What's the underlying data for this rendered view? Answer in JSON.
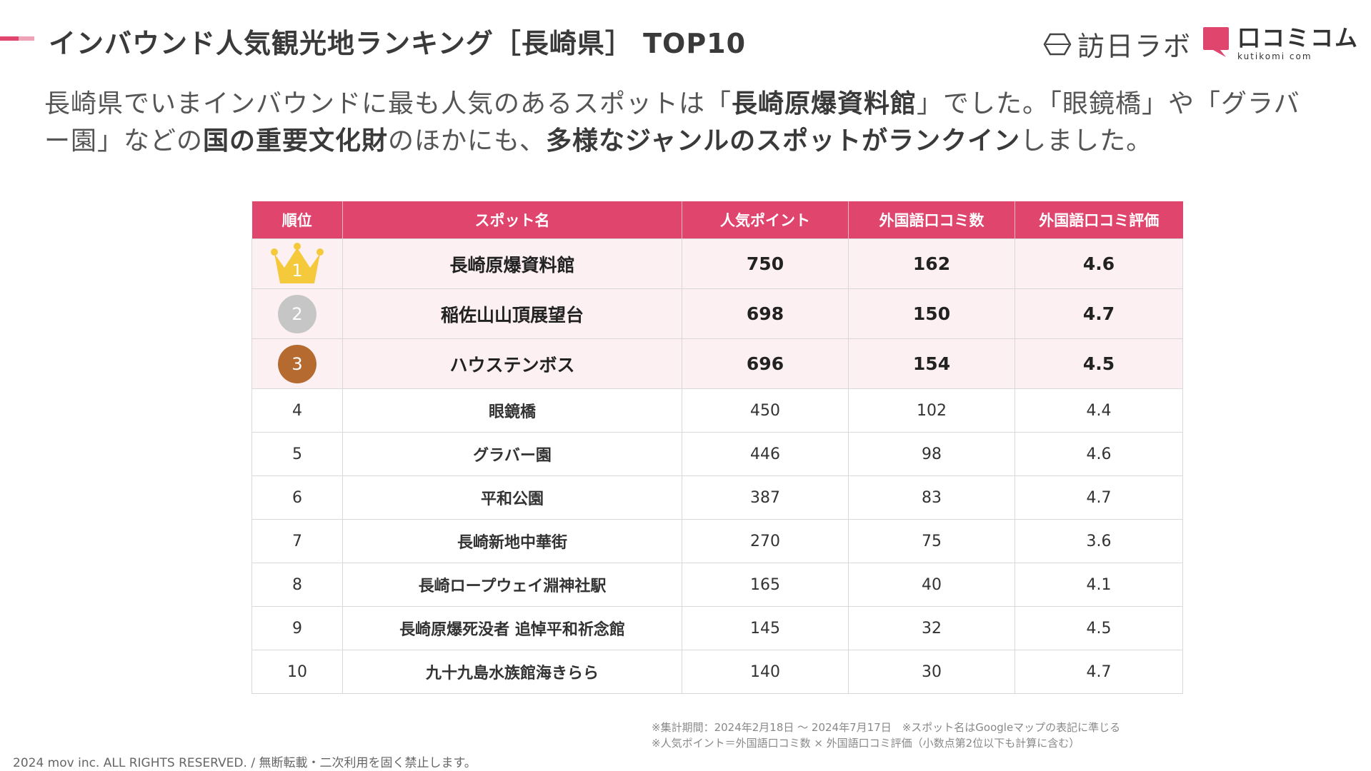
{
  "header": {
    "title": "インバウンド人気観光地ランキング［長崎県］ TOP10",
    "logo_hono": "訪日ラボ",
    "logo_kuti": "口コミコム",
    "logo_kuti_sub": "kutikomi com",
    "accent_color": "#e0456e"
  },
  "description": {
    "p1": "長崎県でいまインバウンドに最も人気のあるスポットは「",
    "b1": "長崎原爆資料館",
    "p2": "」でした。「眼鏡橋」や「グラバー園」などの",
    "b2": "国の重要文化財",
    "p3": "のほかにも、",
    "b3": "多様なジャンルのスポットがランクイン",
    "p4": "しました。"
  },
  "table": {
    "headers": [
      "順位",
      "スポット名",
      "人気ポイント",
      "外国語口コミ数",
      "外国語口コミ評価"
    ],
    "rows": [
      {
        "rank": "1",
        "spot": "長崎原爆資料館",
        "points": "750",
        "reviews": "162",
        "rating": "4.6"
      },
      {
        "rank": "2",
        "spot": "稲佐山山頂展望台",
        "points": "698",
        "reviews": "150",
        "rating": "4.7"
      },
      {
        "rank": "3",
        "spot": "ハウステンボス",
        "points": "696",
        "reviews": "154",
        "rating": "4.5"
      },
      {
        "rank": "4",
        "spot": "眼鏡橋",
        "points": "450",
        "reviews": "102",
        "rating": "4.4"
      },
      {
        "rank": "5",
        "spot": "グラバー園",
        "points": "446",
        "reviews": "98",
        "rating": "4.6"
      },
      {
        "rank": "6",
        "spot": "平和公園",
        "points": "387",
        "reviews": "83",
        "rating": "4.7"
      },
      {
        "rank": "7",
        "spot": "長崎新地中華街",
        "points": "270",
        "reviews": "75",
        "rating": "3.6"
      },
      {
        "rank": "8",
        "spot": "長崎ロープウェイ淵神社駅",
        "points": "165",
        "reviews": "40",
        "rating": "4.1"
      },
      {
        "rank": "9",
        "spot": "長崎原爆死没者 追悼平和祈念館",
        "points": "145",
        "reviews": "32",
        "rating": "4.5"
      },
      {
        "rank": "10",
        "spot": "九十九島水族館海きらら",
        "points": "140",
        "reviews": "30",
        "rating": "4.7"
      }
    ]
  },
  "notes": {
    "line1": "※集計期間：2024年2月18日 〜 2024年7月17日　※スポット名はGoogleマップの表記に準じる",
    "line2": "※人気ポイント＝外国語口コミ数 × 外国語口コミ評価（小数点第2位以下も計算に含む）"
  },
  "footer": {
    "copyright": "2024 mov inc. ALL RIGHTS RESERVED. / 無断転載・二次利用を固く禁止します。"
  },
  "icons": {
    "rank1": "gold-crown-icon",
    "rank2": "silver-medal-icon",
    "rank3": "bronze-medal-icon"
  }
}
